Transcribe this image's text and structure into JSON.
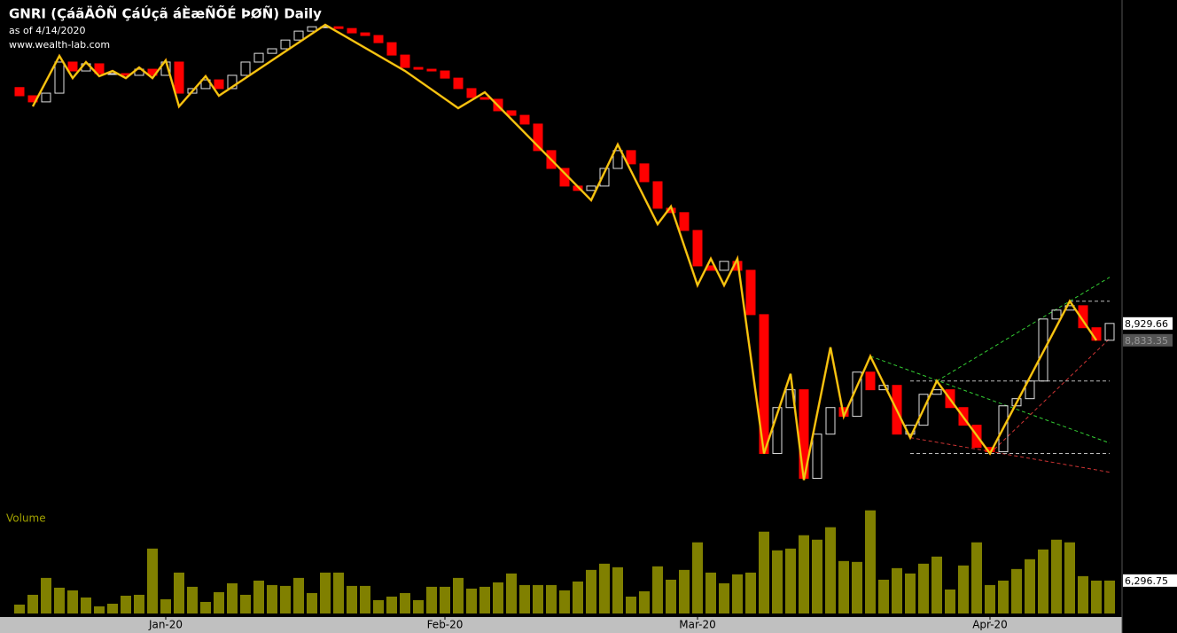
{
  "chart_data": {
    "type": "candlestick",
    "title": "GNRI (ÇáãÄÔÑ ÇáÚçã áÈæÑÕÉ ÞØÑ) Daily",
    "subtitle": "as of 4/14/2020",
    "source": "www.wealth-lab.com",
    "volume_label": "Volume",
    "up_color": "#e0e0e0",
    "down_color": "#ff0000",
    "volume_color": "#808000",
    "ylim": [
      8000,
      10700
    ],
    "y2lim": [
      0,
      20000
    ],
    "xticks": [
      {
        "value": 11,
        "label": "Jan-20"
      },
      {
        "value": 32,
        "label": "Feb-20"
      },
      {
        "value": 51,
        "label": "Mar-20"
      },
      {
        "value": 73,
        "label": "Apr-20"
      }
    ],
    "open": [
      10280,
      10233,
      10198,
      10248,
      10426,
      10375,
      10416,
      10360,
      10360,
      10350,
      10385,
      10350,
      10426,
      10248,
      10274,
      10324,
      10274,
      10350,
      10426,
      10476,
      10502,
      10552,
      10603,
      10628,
      10628,
      10618,
      10593,
      10578,
      10537,
      10466,
      10395,
      10385,
      10375,
      10334,
      10274,
      10223,
      10213,
      10147,
      10121,
      10071,
      9919,
      9817,
      9716,
      9691,
      9716,
      9817,
      9919,
      9843,
      9741,
      9589,
      9564,
      9462,
      9259,
      9234,
      9285,
      9234,
      8980,
      8185,
      8448,
      8550,
      8043,
      8296,
      8448,
      8398,
      8651,
      8550,
      8575,
      8296,
      8347,
      8524,
      8550,
      8448,
      8347,
      8220,
      8195,
      8458,
      8499,
      8600,
      8955,
      9006,
      9031,
      8905,
      8833.35
    ],
    "close": [
      10233,
      10198,
      10248,
      10426,
      10375,
      10416,
      10360,
      10360,
      10350,
      10385,
      10350,
      10426,
      10248,
      10274,
      10324,
      10274,
      10350,
      10426,
      10476,
      10502,
      10552,
      10603,
      10628,
      10628,
      10618,
      10593,
      10578,
      10537,
      10466,
      10395,
      10385,
      10375,
      10334,
      10274,
      10223,
      10213,
      10147,
      10121,
      10071,
      9919,
      9817,
      9716,
      9691,
      9716,
      9817,
      9919,
      9843,
      9741,
      9589,
      9564,
      9462,
      9259,
      9234,
      9285,
      9234,
      8980,
      8185,
      8448,
      8550,
      8043,
      8296,
      8448,
      8398,
      8651,
      8550,
      8575,
      8296,
      8347,
      8524,
      8550,
      8448,
      8347,
      8220,
      8195,
      8458,
      8499,
      8600,
      8955,
      9006,
      9031,
      8905,
      8833.35,
      8929.66
    ],
    "close_labels": [
      {
        "index": 82,
        "label": "8,929.66"
      },
      {
        "index": 81,
        "label": "8,833.35"
      }
    ],
    "volume": [
      1700,
      3570,
      6800,
      4930,
      4420,
      3060,
      1360,
      1870,
      3400,
      3570,
      12410,
      2720,
      7820,
      5100,
      2210,
      4080,
      5780,
      3570,
      6290,
      5440,
      5270,
      6800,
      3910,
      7820,
      7820,
      5270,
      5270,
      2550,
      3230,
      3910,
      2550,
      5100,
      5100,
      6800,
      4760,
      5100,
      5950,
      7650,
      5440,
      5440,
      5440,
      4420,
      6120,
      8330,
      9520,
      8840,
      3230,
      4250,
      9010,
      6460,
      8330,
      13600,
      7820,
      5780,
      7480,
      7820,
      15640,
      12070,
      12410,
      14960,
      14110,
      16490,
      10030,
      9860,
      19720,
      6460,
      8670,
      7650,
      9520,
      10880,
      4590,
      9180,
      13600,
      5440,
      6290,
      8500,
      10370,
      12240,
      14110,
      13600,
      7140,
      6290,
      6296.75
    ],
    "volume_last_label": "6,296.75",
    "zigzag": {
      "color": "#ffa500",
      "index": [
        1,
        3,
        4,
        5,
        6,
        7,
        8,
        9,
        10,
        11,
        12,
        14,
        15,
        23,
        29,
        33,
        35,
        43,
        45,
        48,
        49,
        51,
        52,
        53,
        54,
        56,
        58,
        59,
        61,
        62,
        64,
        67,
        69,
        73,
        79,
        81
      ],
      "values": [
        10172,
        10461,
        10334,
        10426,
        10345,
        10375,
        10334,
        10395,
        10334,
        10436,
        10172,
        10345,
        10233,
        10639,
        10375,
        10162,
        10253,
        9635,
        9954,
        9498,
        9599,
        9148,
        9300,
        9148,
        9300,
        8185,
        8641,
        8033,
        8793,
        8398,
        8742,
        8276,
        8600,
        8185,
        9057,
        8833
      ]
    },
    "trendlines": [
      {
        "color": "#33cc33",
        "start": [
          64,
          8742
        ],
        "end": [
          82,
          8245
        ]
      },
      {
        "color": "#33cc33",
        "start": [
          69,
          8600
        ],
        "end": [
          82,
          9194
        ]
      },
      {
        "color": "#cc3333",
        "start": [
          67,
          8276
        ],
        "end": [
          82,
          8078
        ]
      },
      {
        "color": "#cc3333",
        "start": [
          73,
          8185
        ],
        "end": [
          82,
          8843
        ]
      },
      {
        "color": "#bbbbbb",
        "start": [
          67,
          8600
        ],
        "end": [
          82,
          8600
        ]
      },
      {
        "color": "#bbbbbb",
        "start": [
          67,
          8185
        ],
        "end": [
          82,
          8185
        ]
      },
      {
        "color": "#bbbbbb",
        "start": [
          79,
          9057
        ],
        "end": [
          82,
          9057
        ]
      }
    ]
  }
}
